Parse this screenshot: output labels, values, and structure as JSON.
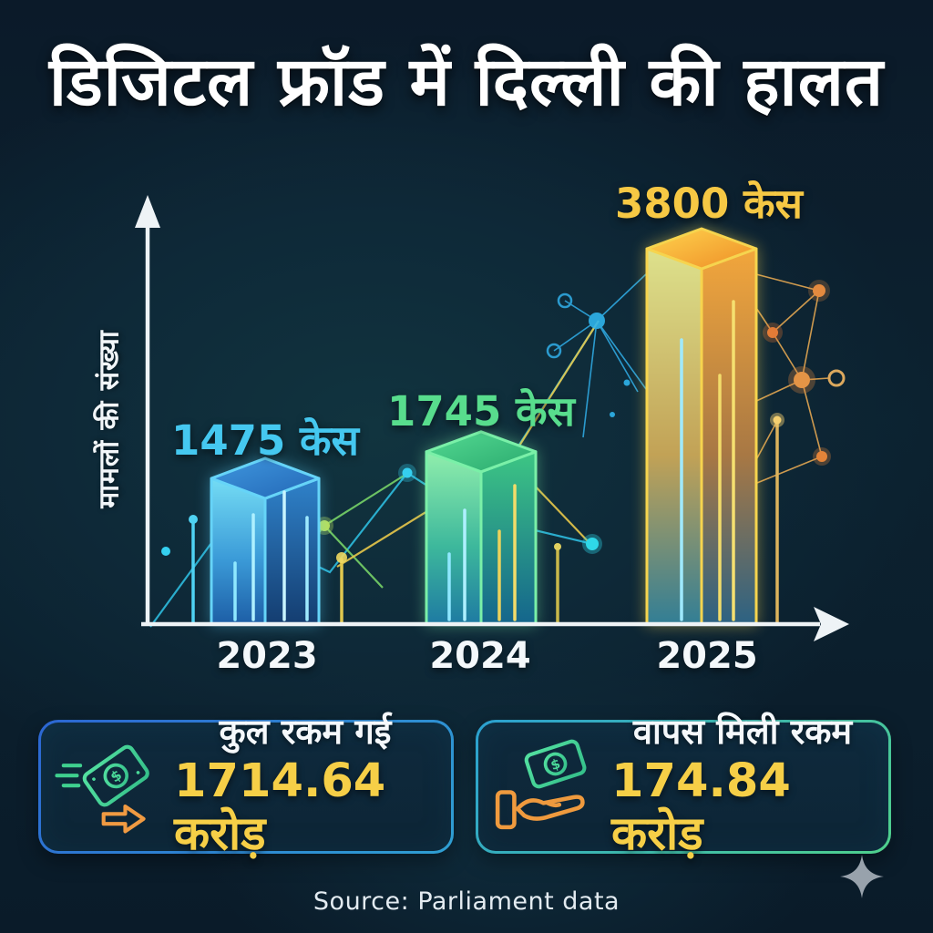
{
  "title": "डिजिटल फ्रॉड में दिल्ली की हालत",
  "chart_data": {
    "type": "bar",
    "title": "डिजिटल फ्रॉड में दिल्ली की हालत",
    "categories": [
      "2023",
      "2024",
      "2025"
    ],
    "values": [
      1475,
      1745,
      3800
    ],
    "bar_labels": [
      "1475 केस",
      "1745 केस",
      "3800 केस"
    ],
    "label_colors": [
      "#45c8f0",
      "#58dd8d",
      "#f6c844"
    ],
    "bar_colors": [
      "#3b93dc",
      "#43d187",
      "#f5a82e"
    ],
    "ylabel": "मामलों की संख्या",
    "xlabel": "",
    "ylim": [
      0,
      3800
    ],
    "grid": false,
    "legend": false
  },
  "stats": [
    {
      "icon": "money-flying-icon",
      "label": "कुल रकम गई",
      "value": "1714.64 करोड़"
    },
    {
      "icon": "money-received-hand-icon",
      "label": "वापस मिली रकम",
      "value": "174.84 करोड़"
    }
  ],
  "source": "Source: Parliament data",
  "colors": {
    "background": "#0c1e2c",
    "axis": "#f2f6f8",
    "value_yellow": "#f6cf47",
    "network_cyan": "#2fc4e8",
    "network_green": "#7ddc6a",
    "network_orange": "#e89a45"
  }
}
